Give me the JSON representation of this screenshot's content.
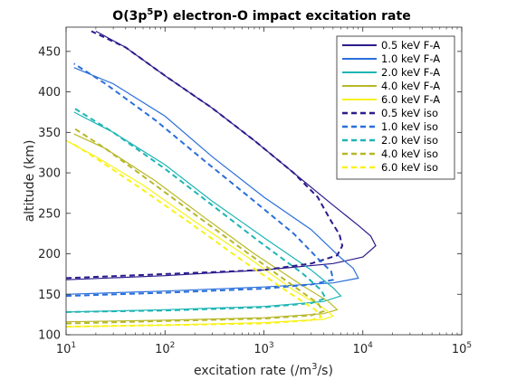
{
  "chart_data": {
    "type": "line",
    "title_parts": {
      "main": "O(3p",
      "sup": "5",
      "rest": "P) electron-O impact excitation rate"
    },
    "xlabel": "excitation rate (/m",
    "xlabel_sup": "3",
    "xlabel_rest": "/s)",
    "ylabel": "altitude (km)",
    "xscale": "log",
    "xlim": [
      10,
      100000
    ],
    "ylim": [
      100,
      480
    ],
    "xticks": [
      {
        "base": "10",
        "exp": "1",
        "value": 10
      },
      {
        "base": "10",
        "exp": "2",
        "value": 100
      },
      {
        "base": "10",
        "exp": "3",
        "value": 1000
      },
      {
        "base": "10",
        "exp": "4",
        "value": 10000
      },
      {
        "base": "10",
        "exp": "5",
        "value": 100000
      }
    ],
    "yticks": [
      "100",
      "150",
      "200",
      "250",
      "300",
      "350",
      "400",
      "450"
    ],
    "legend_position": "top-right",
    "series": [
      {
        "name": "0.5 keV F-A",
        "color": "#2b1c8c",
        "dash": false,
        "points": [
          [
            10,
            168
          ],
          [
            100,
            173
          ],
          [
            1000,
            180
          ],
          [
            5000,
            188
          ],
          [
            10000,
            196
          ],
          [
            13500,
            210
          ],
          [
            12000,
            222
          ],
          [
            9000,
            235
          ],
          [
            5000,
            260
          ],
          [
            2000,
            300
          ],
          [
            800,
            340
          ],
          [
            300,
            380
          ],
          [
            100,
            420
          ],
          [
            40,
            455
          ],
          [
            20,
            475
          ]
        ]
      },
      {
        "name": "1.0 keV F-A",
        "color": "#2a6fdb",
        "dash": false,
        "points": [
          [
            10,
            150
          ],
          [
            100,
            154
          ],
          [
            1000,
            159
          ],
          [
            5000,
            164
          ],
          [
            9000,
            170
          ],
          [
            8000,
            182
          ],
          [
            6000,
            195
          ],
          [
            3000,
            230
          ],
          [
            1000,
            270
          ],
          [
            300,
            320
          ],
          [
            100,
            370
          ],
          [
            30,
            410
          ],
          [
            12,
            430
          ]
        ]
      },
      {
        "name": "2.0 keV F-A",
        "color": "#1fb5b5",
        "dash": false,
        "points": [
          [
            10,
            128
          ],
          [
            100,
            131
          ],
          [
            1000,
            135
          ],
          [
            4000,
            141
          ],
          [
            6000,
            148
          ],
          [
            5000,
            158
          ],
          [
            3000,
            180
          ],
          [
            1000,
            220
          ],
          [
            300,
            265
          ],
          [
            100,
            310
          ],
          [
            30,
            350
          ],
          [
            12,
            375
          ]
        ]
      },
      {
        "name": "4.0 keV F-A",
        "color": "#b8b82a",
        "dash": false,
        "points": [
          [
            10,
            116
          ],
          [
            100,
            118
          ],
          [
            1000,
            121
          ],
          [
            4000,
            126
          ],
          [
            5500,
            131
          ],
          [
            4500,
            141
          ],
          [
            2500,
            160
          ],
          [
            800,
            200
          ],
          [
            250,
            245
          ],
          [
            80,
            290
          ],
          [
            25,
            330
          ],
          [
            12,
            348
          ]
        ]
      },
      {
        "name": "6.0 keV F-A",
        "color": "#f9f21a",
        "dash": false,
        "points": [
          [
            10,
            110
          ],
          [
            100,
            112
          ],
          [
            1000,
            115
          ],
          [
            4000,
            119
          ],
          [
            5000,
            123
          ],
          [
            4000,
            133
          ],
          [
            2000,
            155
          ],
          [
            700,
            195
          ],
          [
            200,
            240
          ],
          [
            60,
            285
          ],
          [
            20,
            320
          ],
          [
            10,
            340
          ]
        ]
      },
      {
        "name": "0.5 keV iso",
        "color": "#2b1c8c",
        "dash": true,
        "points": [
          [
            10,
            170
          ],
          [
            100,
            175
          ],
          [
            1000,
            180
          ],
          [
            3000,
            188
          ],
          [
            5500,
            198
          ],
          [
            6200,
            210
          ],
          [
            5800,
            224
          ],
          [
            4800,
            240
          ],
          [
            3500,
            270
          ],
          [
            2000,
            300
          ],
          [
            800,
            340
          ],
          [
            300,
            380
          ],
          [
            100,
            420
          ],
          [
            40,
            455
          ],
          [
            18,
            475
          ]
        ]
      },
      {
        "name": "1.0 keV iso",
        "color": "#2a6fdb",
        "dash": true,
        "points": [
          [
            10,
            148
          ],
          [
            100,
            152
          ],
          [
            1000,
            157
          ],
          [
            3000,
            162
          ],
          [
            5000,
            168
          ],
          [
            4800,
            178
          ],
          [
            3800,
            190
          ],
          [
            2000,
            225
          ],
          [
            800,
            265
          ],
          [
            250,
            315
          ],
          [
            80,
            365
          ],
          [
            25,
            410
          ],
          [
            12,
            435
          ]
        ]
      },
      {
        "name": "2.0 keV iso",
        "color": "#1fb5b5",
        "dash": true,
        "points": [
          [
            10,
            128
          ],
          [
            100,
            130
          ],
          [
            1000,
            134
          ],
          [
            3000,
            139
          ],
          [
            4200,
            145
          ],
          [
            3800,
            155
          ],
          [
            2500,
            175
          ],
          [
            900,
            215
          ],
          [
            300,
            260
          ],
          [
            100,
            305
          ],
          [
            30,
            350
          ],
          [
            12,
            380
          ]
        ]
      },
      {
        "name": "4.0 keV iso",
        "color": "#b8b82a",
        "dash": true,
        "points": [
          [
            10,
            114
          ],
          [
            100,
            117
          ],
          [
            1000,
            120
          ],
          [
            3000,
            124
          ],
          [
            4000,
            129
          ],
          [
            3500,
            139
          ],
          [
            2000,
            160
          ],
          [
            700,
            200
          ],
          [
            220,
            245
          ],
          [
            70,
            290
          ],
          [
            25,
            330
          ],
          [
            12,
            355
          ]
        ]
      },
      {
        "name": "6.0 keV iso",
        "color": "#f9f21a",
        "dash": true,
        "points": [
          [
            10,
            110
          ],
          [
            100,
            112
          ],
          [
            1000,
            114
          ],
          [
            3000,
            118
          ],
          [
            3800,
            122
          ],
          [
            3300,
            131
          ],
          [
            1800,
            152
          ],
          [
            600,
            192
          ],
          [
            180,
            238
          ],
          [
            55,
            282
          ],
          [
            20,
            318
          ],
          [
            11,
            338
          ]
        ]
      }
    ]
  }
}
